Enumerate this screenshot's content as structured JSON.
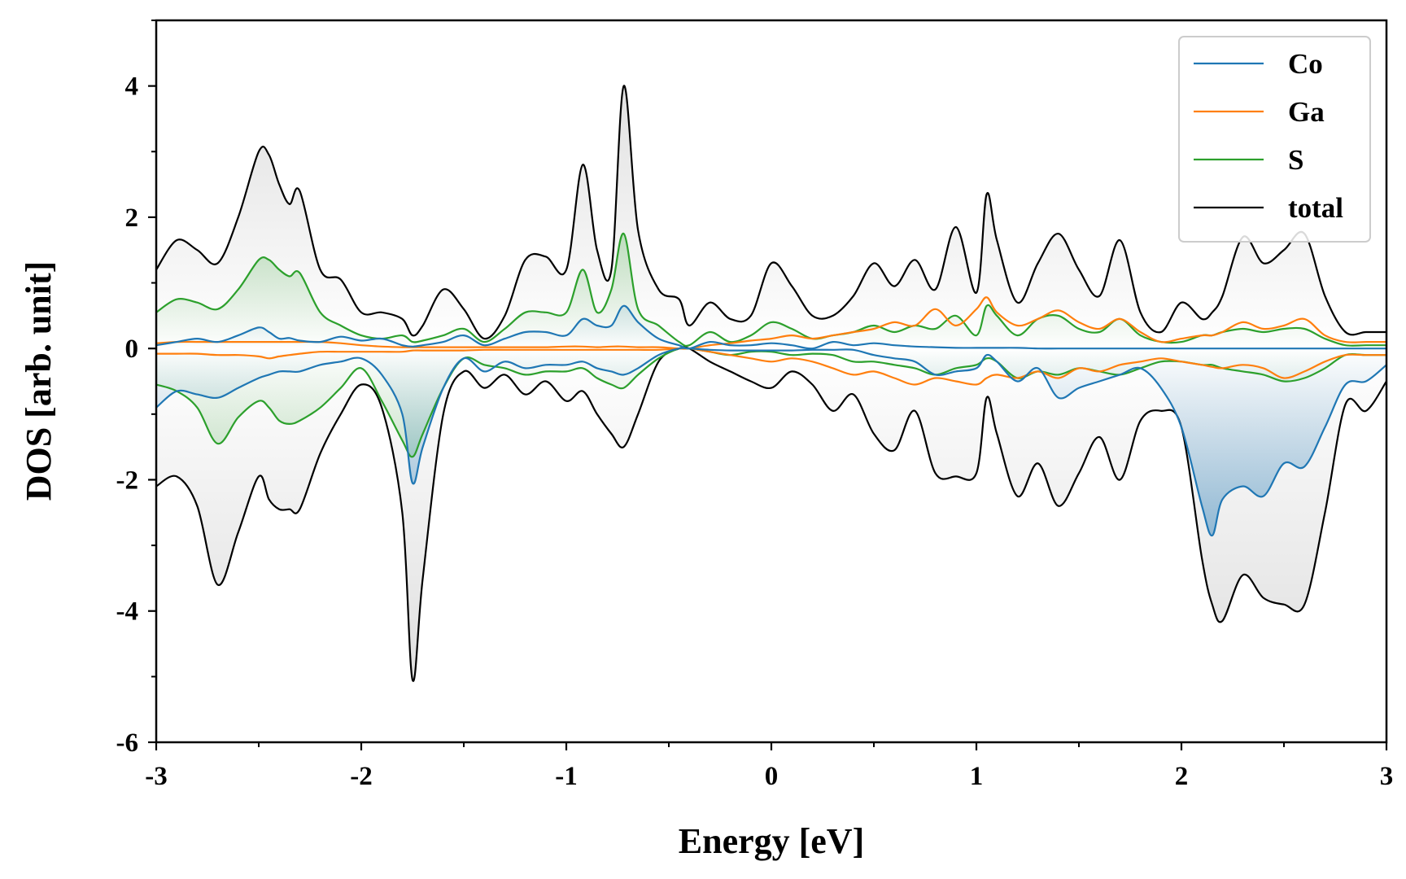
{
  "chart_data": {
    "type": "line",
    "xlabel": "Energy [eV]",
    "ylabel": "DOS [arb. unit]",
    "xlim": [
      -3,
      3
    ],
    "ylim": [
      -6,
      5
    ],
    "x_ticks": [
      -3,
      -2,
      -1,
      0,
      1,
      2,
      3
    ],
    "x_tick_labels": [
      "-3",
      "-2",
      "-1",
      "0",
      "1",
      "2",
      "3"
    ],
    "y_ticks": [
      -6,
      -4,
      -2,
      0,
      2,
      4
    ],
    "y_tick_labels": [
      "-6",
      "-4",
      "-2",
      "0",
      "2",
      "4"
    ],
    "grid": false,
    "legend_position": "top-right",
    "x": [
      -3.0,
      -2.9,
      -2.8,
      -2.7,
      -2.6,
      -2.5,
      -2.45,
      -2.4,
      -2.35,
      -2.3,
      -2.2,
      -2.1,
      -2.0,
      -1.9,
      -1.8,
      -1.75,
      -1.7,
      -1.6,
      -1.5,
      -1.4,
      -1.3,
      -1.2,
      -1.1,
      -1.0,
      -0.92,
      -0.85,
      -0.78,
      -0.72,
      -0.65,
      -0.55,
      -0.45,
      -0.4,
      -0.3,
      -0.2,
      -0.1,
      0.0,
      0.1,
      0.2,
      0.3,
      0.4,
      0.5,
      0.6,
      0.7,
      0.8,
      0.9,
      1.0,
      1.05,
      1.1,
      1.2,
      1.3,
      1.4,
      1.5,
      1.6,
      1.7,
      1.8,
      1.9,
      2.0,
      2.1,
      2.15,
      2.2,
      2.3,
      2.4,
      2.5,
      2.6,
      2.7,
      2.8,
      2.9,
      3.0
    ],
    "series": [
      {
        "name": "Co",
        "color": "#1f77b4",
        "up": [
          0.05,
          0.1,
          0.15,
          0.1,
          0.2,
          0.32,
          0.25,
          0.15,
          0.16,
          0.12,
          0.1,
          0.18,
          0.12,
          0.15,
          0.05,
          0.03,
          0.05,
          0.1,
          0.2,
          0.05,
          0.15,
          0.25,
          0.25,
          0.2,
          0.45,
          0.35,
          0.35,
          0.65,
          0.4,
          0.15,
          0.05,
          0.0,
          0.1,
          0.05,
          0.05,
          0.08,
          0.05,
          0.0,
          0.1,
          0.05,
          0.08,
          0.05,
          0.03,
          0.02,
          0.01,
          0.01,
          0.01,
          0.01,
          0.01,
          0.0,
          0.0,
          0.0,
          0.0,
          0.0,
          0.0,
          0.0,
          0.0,
          0.0,
          0.0,
          0.0,
          0.0,
          0.0,
          0.0,
          0.0,
          0.0,
          0.0,
          0.0,
          0.0
        ],
        "down": [
          -0.9,
          -0.65,
          -0.7,
          -0.75,
          -0.6,
          -0.45,
          -0.4,
          -0.35,
          -0.35,
          -0.35,
          -0.25,
          -0.2,
          -0.15,
          -0.4,
          -1.0,
          -2.05,
          -1.5,
          -0.6,
          -0.15,
          -0.35,
          -0.2,
          -0.3,
          -0.25,
          -0.25,
          -0.2,
          -0.3,
          -0.35,
          -0.4,
          -0.3,
          -0.1,
          0.0,
          0.0,
          -0.02,
          -0.03,
          -0.03,
          -0.03,
          -0.03,
          -0.02,
          -0.02,
          -0.02,
          -0.1,
          -0.15,
          -0.2,
          -0.4,
          -0.35,
          -0.3,
          -0.1,
          -0.2,
          -0.5,
          -0.3,
          -0.75,
          -0.6,
          -0.5,
          -0.4,
          -0.3,
          -0.6,
          -1.2,
          -2.4,
          -2.85,
          -2.3,
          -2.1,
          -2.25,
          -1.75,
          -1.8,
          -1.2,
          -0.55,
          -0.5,
          -0.25
        ]
      },
      {
        "name": "Ga",
        "color": "#ff7f0e",
        "up": [
          0.08,
          0.1,
          0.1,
          0.1,
          0.1,
          0.1,
          0.1,
          0.1,
          0.1,
          0.1,
          0.1,
          0.08,
          0.05,
          0.03,
          0.02,
          0.02,
          0.02,
          0.02,
          0.02,
          0.02,
          0.02,
          0.02,
          0.02,
          0.03,
          0.03,
          0.02,
          0.03,
          0.03,
          0.02,
          0.02,
          0.0,
          0.0,
          0.05,
          0.08,
          0.12,
          0.15,
          0.2,
          0.15,
          0.2,
          0.25,
          0.3,
          0.4,
          0.35,
          0.6,
          0.35,
          0.6,
          0.78,
          0.55,
          0.35,
          0.45,
          0.58,
          0.4,
          0.3,
          0.45,
          0.25,
          0.1,
          0.15,
          0.2,
          0.2,
          0.25,
          0.4,
          0.3,
          0.35,
          0.45,
          0.2,
          0.1,
          0.1,
          0.1
        ],
        "down": [
          -0.08,
          -0.08,
          -0.08,
          -0.1,
          -0.1,
          -0.12,
          -0.15,
          -0.12,
          -0.1,
          -0.08,
          -0.05,
          -0.05,
          -0.05,
          -0.05,
          -0.05,
          -0.03,
          -0.03,
          -0.03,
          -0.03,
          -0.02,
          -0.02,
          -0.02,
          -0.02,
          -0.02,
          -0.02,
          -0.02,
          -0.02,
          -0.02,
          -0.02,
          -0.02,
          0.0,
          0.0,
          -0.05,
          -0.1,
          -0.15,
          -0.2,
          -0.15,
          -0.2,
          -0.3,
          -0.4,
          -0.35,
          -0.45,
          -0.55,
          -0.45,
          -0.5,
          -0.55,
          -0.45,
          -0.4,
          -0.45,
          -0.35,
          -0.45,
          -0.3,
          -0.35,
          -0.25,
          -0.2,
          -0.15,
          -0.2,
          -0.25,
          -0.28,
          -0.3,
          -0.25,
          -0.3,
          -0.45,
          -0.35,
          -0.2,
          -0.1,
          -0.1,
          -0.1
        ]
      },
      {
        "name": "S",
        "color": "#2ca02c",
        "up": [
          0.55,
          0.75,
          0.7,
          0.6,
          0.9,
          1.35,
          1.35,
          1.2,
          1.1,
          1.15,
          0.55,
          0.35,
          0.2,
          0.15,
          0.2,
          0.1,
          0.12,
          0.2,
          0.3,
          0.1,
          0.3,
          0.55,
          0.55,
          0.55,
          1.2,
          0.55,
          0.9,
          1.75,
          0.6,
          0.35,
          0.1,
          0.05,
          0.25,
          0.1,
          0.2,
          0.4,
          0.3,
          0.15,
          0.2,
          0.25,
          0.35,
          0.25,
          0.35,
          0.3,
          0.5,
          0.2,
          0.65,
          0.5,
          0.2,
          0.45,
          0.5,
          0.3,
          0.25,
          0.45,
          0.2,
          0.1,
          0.1,
          0.2,
          0.2,
          0.25,
          0.3,
          0.25,
          0.3,
          0.3,
          0.15,
          0.05,
          0.05,
          0.05
        ],
        "down": [
          -0.55,
          -0.65,
          -0.9,
          -1.45,
          -1.05,
          -0.8,
          -0.9,
          -1.1,
          -1.15,
          -1.1,
          -0.9,
          -0.6,
          -0.3,
          -0.8,
          -1.4,
          -1.65,
          -1.3,
          -0.6,
          -0.15,
          -0.25,
          -0.3,
          -0.4,
          -0.35,
          -0.35,
          -0.3,
          -0.45,
          -0.55,
          -0.6,
          -0.4,
          -0.15,
          0.0,
          0.0,
          -0.05,
          -0.1,
          -0.05,
          -0.05,
          -0.1,
          -0.08,
          -0.1,
          -0.2,
          -0.2,
          -0.25,
          -0.3,
          -0.4,
          -0.3,
          -0.25,
          -0.15,
          -0.2,
          -0.45,
          -0.35,
          -0.4,
          -0.3,
          -0.35,
          -0.4,
          -0.3,
          -0.2,
          -0.2,
          -0.25,
          -0.25,
          -0.3,
          -0.35,
          -0.4,
          -0.5,
          -0.45,
          -0.3,
          -0.1,
          -0.1,
          -0.1
        ]
      },
      {
        "name": "total",
        "color": "#000000",
        "up": [
          1.2,
          1.65,
          1.5,
          1.3,
          2.0,
          3.0,
          2.95,
          2.5,
          2.2,
          2.4,
          1.2,
          1.05,
          0.55,
          0.55,
          0.45,
          0.2,
          0.35,
          0.9,
          0.6,
          0.15,
          0.5,
          1.35,
          1.4,
          1.2,
          2.8,
          1.5,
          1.2,
          4.0,
          1.8,
          0.9,
          0.75,
          0.35,
          0.7,
          0.45,
          0.5,
          1.3,
          0.95,
          0.5,
          0.5,
          0.8,
          1.3,
          0.95,
          1.35,
          0.9,
          1.85,
          0.85,
          2.35,
          1.65,
          0.7,
          1.3,
          1.75,
          1.2,
          0.8,
          1.65,
          0.55,
          0.25,
          0.7,
          0.45,
          0.55,
          0.8,
          1.7,
          1.3,
          1.5,
          1.75,
          0.8,
          0.25,
          0.25,
          0.25
        ],
        "down": [
          -2.1,
          -1.95,
          -2.4,
          -3.6,
          -2.8,
          -1.95,
          -2.3,
          -2.45,
          -2.45,
          -2.45,
          -1.6,
          -1.0,
          -0.55,
          -0.9,
          -2.5,
          -5.05,
          -3.5,
          -1.0,
          -0.35,
          -0.6,
          -0.4,
          -0.7,
          -0.5,
          -0.8,
          -0.65,
          -1.0,
          -1.3,
          -1.5,
          -1.0,
          -0.2,
          0.0,
          0.0,
          -0.2,
          -0.35,
          -0.5,
          -0.6,
          -0.35,
          -0.55,
          -0.95,
          -0.7,
          -1.3,
          -1.55,
          -0.95,
          -1.9,
          -1.95,
          -1.9,
          -0.75,
          -1.3,
          -2.25,
          -1.75,
          -2.4,
          -1.9,
          -1.35,
          -2.0,
          -1.1,
          -0.95,
          -1.2,
          -3.2,
          -3.9,
          -4.15,
          -3.45,
          -3.8,
          -3.9,
          -3.9,
          -2.5,
          -0.85,
          -0.95,
          -0.5
        ]
      }
    ]
  }
}
